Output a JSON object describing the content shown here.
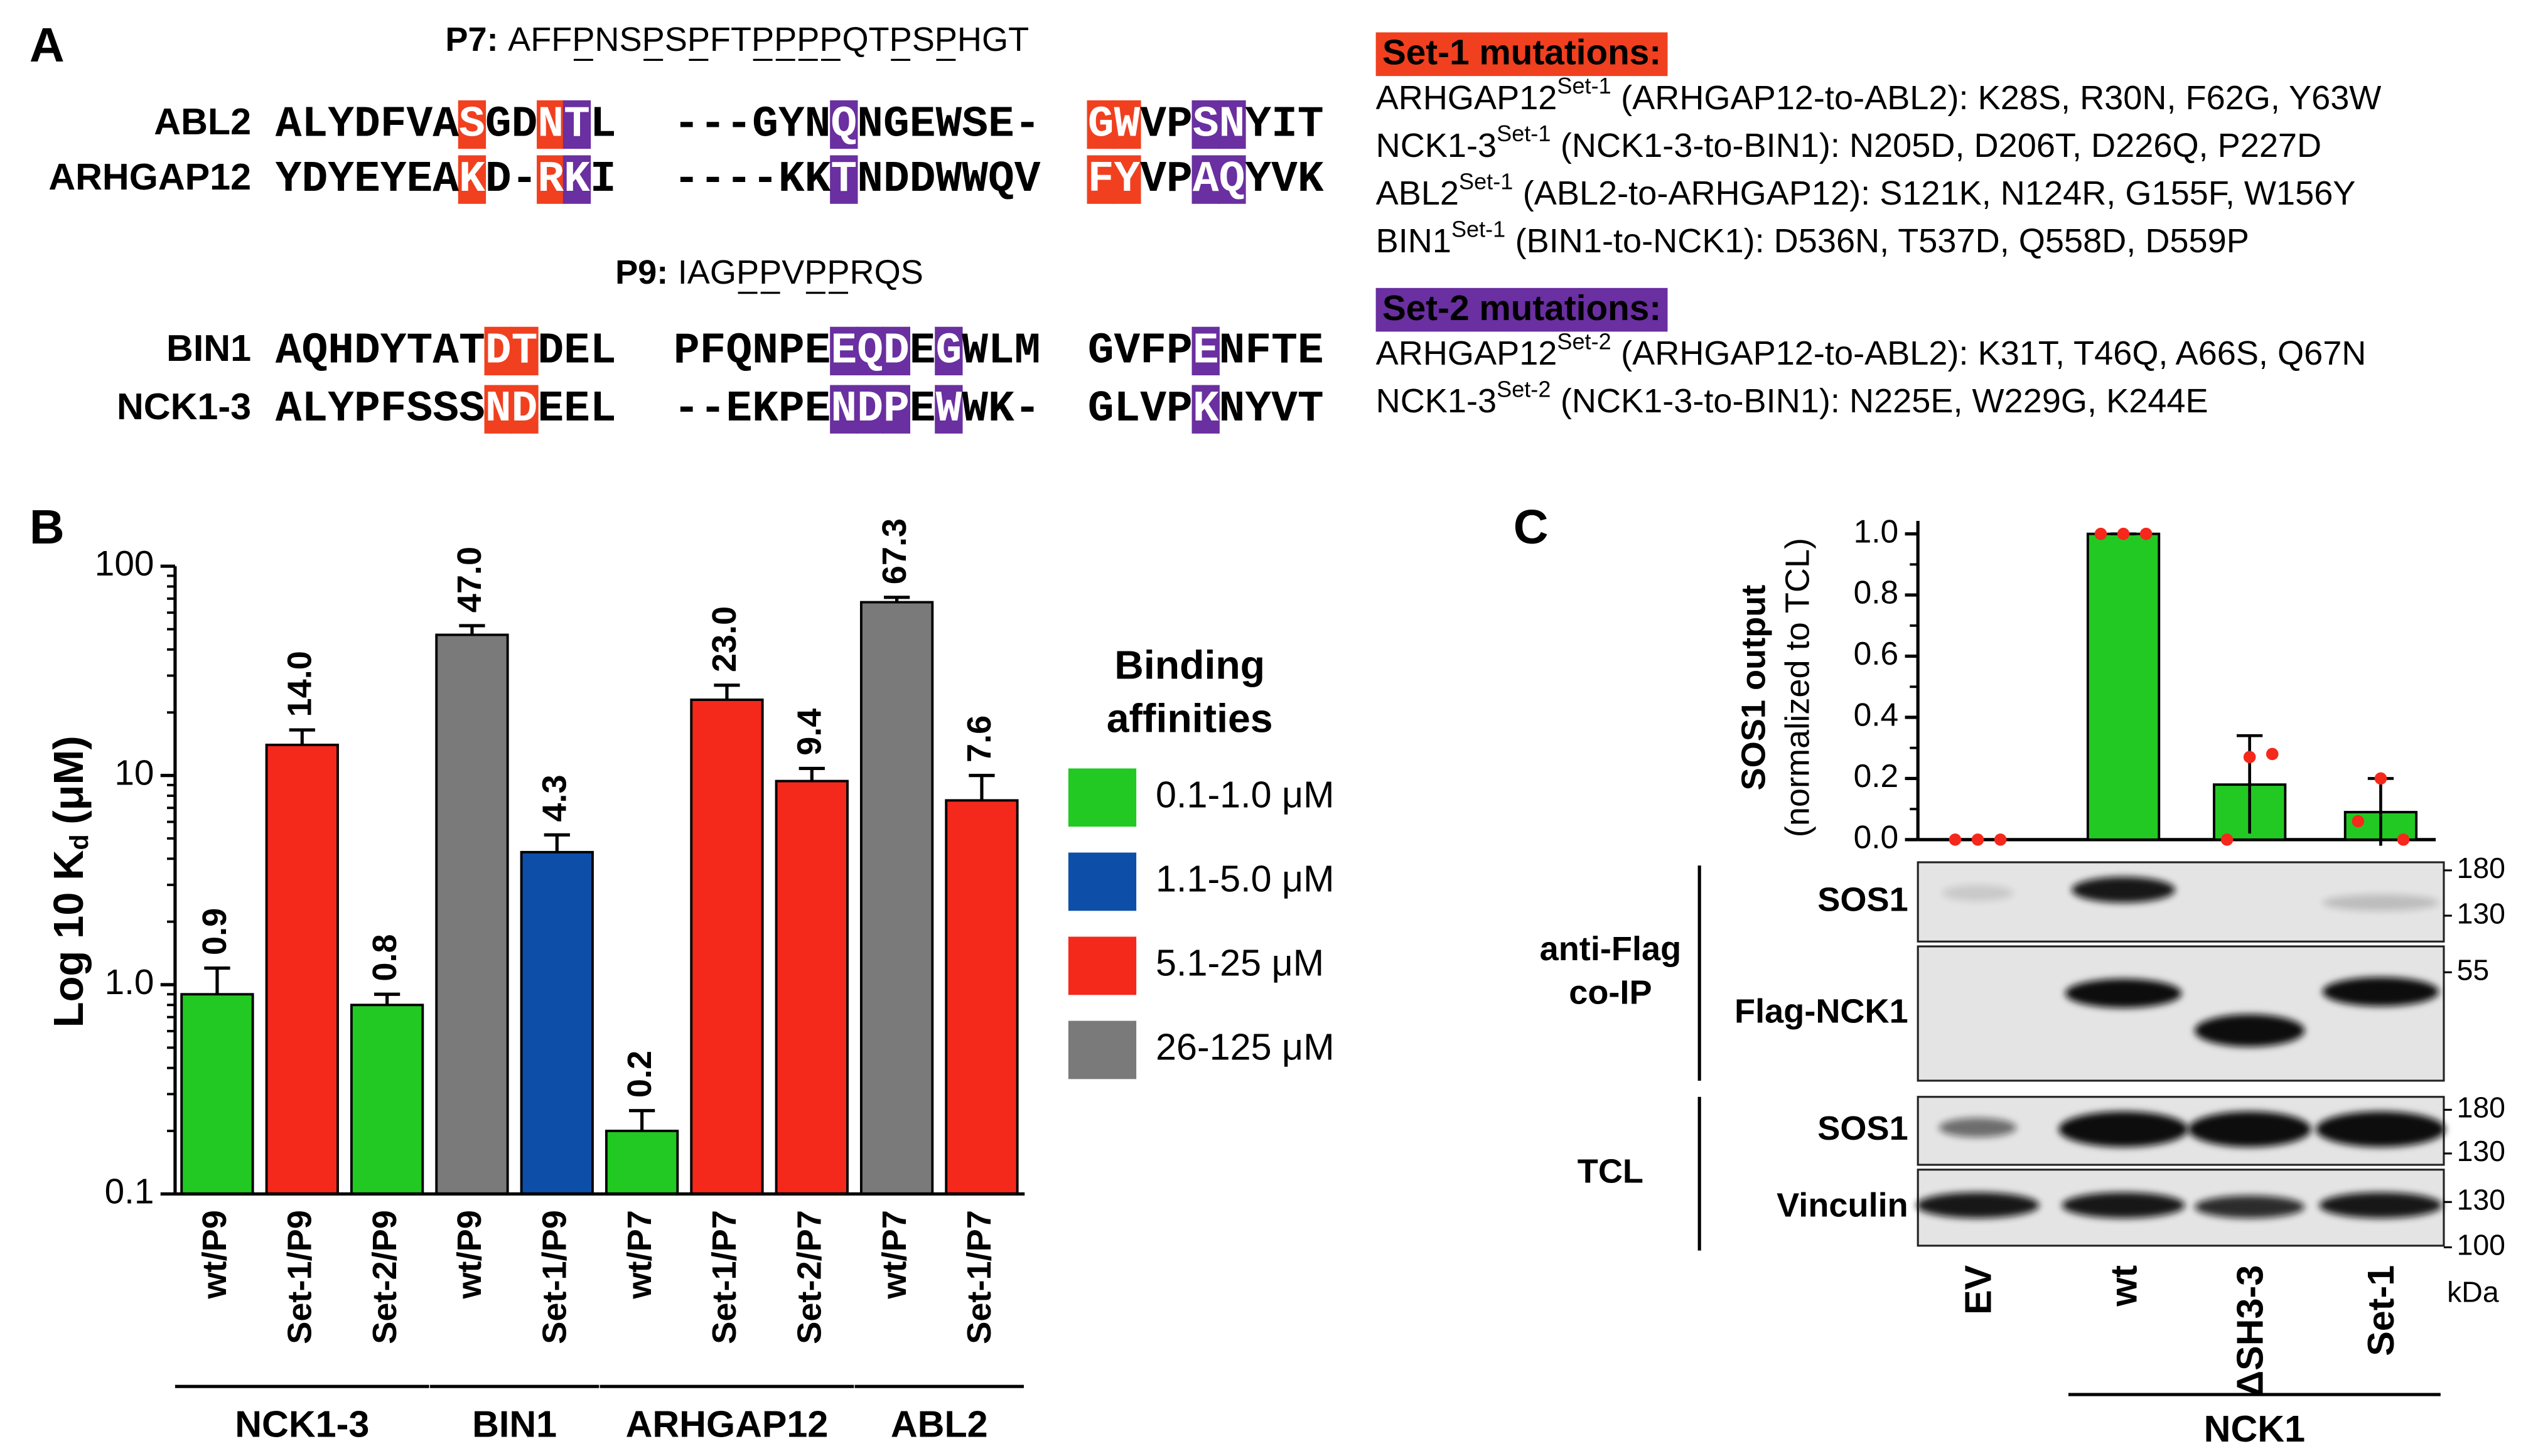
{
  "panel_a": {
    "label": "A",
    "peptides": [
      {
        "name": "P7:",
        "sequence": "AFFPNSPSPFTPPPPQTPSPHGT"
      },
      {
        "name": "P9:",
        "sequence": "IAGPPVPPRQS"
      }
    ],
    "alignments": [
      [
        {
          "name": "ABL2",
          "blocks": [
            "ALYDFVASGDNTL",
            "---GYNQNGEWSE-",
            "GWVPSNYIT"
          ]
        },
        {
          "name": "ARHGAP12",
          "blocks": [
            "YDYEYEAKD-RKI",
            "----KKTNDDWWQV",
            "FYVPAQYVK"
          ]
        }
      ],
      [
        {
          "name": "BIN1",
          "blocks": [
            "AQHDYTATDTDEL",
            "PFQNPEEQDEGWLM",
            "GVFPENFTE"
          ]
        },
        {
          "name": "NCK1-3",
          "blocks": [
            "ALYPFSSSNDEEL",
            "--EKPENDPEWWK-",
            "GLVPKNYVT"
          ]
        }
      ]
    ],
    "mutation_sets": [
      {
        "title": "Set-1 mutations:",
        "color": "#f0401f",
        "items": [
          {
            "protein": "ARHGAP12",
            "set": "Set-1",
            "description": "(ARHGAP12-to-ABL2): K28S, R30N, F62G, Y63W"
          },
          {
            "protein": "NCK1-3",
            "set": "Set-1",
            "description": "(NCK1-3-to-BIN1): N205D, D206T, D226Q, P227D"
          },
          {
            "protein": "ABL2",
            "set": "Set-1",
            "description": "(ABL2-to-ARHGAP12): S121K, N124R, G155F, W156Y"
          },
          {
            "protein": "BIN1",
            "set": "Set-1",
            "description": "(BIN1-to-NCK1): D536N, T537D, Q558D, D559P"
          }
        ]
      },
      {
        "title": "Set-2 mutations:",
        "color": "#6a2fa0",
        "items": [
          {
            "protein": "ARHGAP12",
            "set": "Set-2",
            "description": "(ARHGAP12-to-ABL2): K31T, T46Q, A66S, Q67N"
          },
          {
            "protein": "NCK1-3",
            "set": "Set-2",
            "description": "(NCK1-3-to-BIN1): N225E, W229G, K244E"
          }
        ]
      }
    ]
  },
  "chart_data": [
    {
      "type": "bar",
      "label": "B",
      "ylabel": [
        "Log 10 K",
        "d",
        "(μM)"
      ],
      "log": true,
      "ylim": [
        0.1,
        100
      ],
      "yticks": [
        0.1,
        {
          "value": 1,
          "label": "1.0"
        },
        10,
        100
      ],
      "groups": [
        {
          "name": "NCK1-3",
          "categories": [
            "wt/P9",
            "Set-1/P9",
            "Set-2/P9"
          ],
          "values": [
            0.9,
            14.0,
            0.8
          ],
          "value_labels": [
            "0.9",
            "14.0",
            "0.8"
          ],
          "errors": [
            0.3,
            2.5,
            0.1
          ],
          "colors": [
            "#22c922",
            "#f5281c",
            "#22c922"
          ]
        },
        {
          "name": "BIN1",
          "categories": [
            "wt/P9",
            "Set-1/P9"
          ],
          "values": [
            47.0,
            4.3
          ],
          "value_labels": [
            "47.0",
            "4.3"
          ],
          "errors": [
            5,
            0.9
          ],
          "colors": [
            "#7a7a7a",
            "#0d4fa8"
          ]
        },
        {
          "name": "ARHGAP12",
          "categories": [
            "wt/P7",
            "Set-1/P7",
            "Set-2/P7"
          ],
          "values": [
            0.2,
            23.0,
            9.4
          ],
          "value_labels": [
            "0.2",
            "23.0",
            "9.4"
          ],
          "errors": [
            0.05,
            4,
            1.4
          ],
          "colors": [
            "#22c922",
            "#f5281c",
            "#f5281c"
          ]
        },
        {
          "name": "ABL2",
          "categories": [
            "wt/P7",
            "Set-1/P7"
          ],
          "values": [
            67.3,
            7.6
          ],
          "value_labels": [
            "67.3",
            "7.6"
          ],
          "errors": [
            3.7,
            2.4
          ],
          "colors": [
            "#7a7a7a",
            "#f5281c"
          ]
        }
      ],
      "legend": {
        "title": [
          "Binding",
          "affinities"
        ],
        "items": [
          {
            "label": "0.1-1.0 μM",
            "color": "#22c922"
          },
          {
            "label": "1.1-5.0 μM",
            "color": "#0d4fa8"
          },
          {
            "label": "5.1-25 μM",
            "color": "#f5281c"
          },
          {
            "label": "26-125 μM",
            "color": "#7a7a7a"
          }
        ]
      }
    },
    {
      "type": "bar",
      "label": "C",
      "ylabel": [
        "SOS1 output",
        "(normalized to TCL)"
      ],
      "ylim": [
        0,
        1
      ],
      "yticks": [
        {
          "value": 0,
          "label": "0.0"
        },
        0.2,
        0.4,
        0.6,
        0.8,
        {
          "value": 1,
          "label": "1.0"
        }
      ],
      "color": "#22c922",
      "point_color": "#f5281c",
      "categories": [
        "EV",
        "wt",
        "ΔSH3-3",
        "Set-1"
      ],
      "values": [
        0,
        1.0,
        0.18,
        0.09
      ],
      "errors": [
        0,
        0,
        0.16,
        0.11
      ],
      "points": [
        [
          0,
          0,
          0
        ],
        [
          1,
          1,
          1
        ],
        [
          0,
          0.27,
          0.28
        ],
        [
          0.06,
          0.2,
          0
        ]
      ],
      "group_label": "NCK1"
    }
  ],
  "blot": {
    "rows": [
      {
        "label": "SOS1",
        "markers": [
          180,
          130
        ]
      },
      {
        "label": "Flag-NCK1",
        "markers": [
          55
        ]
      },
      {
        "label": "SOS1",
        "markers": [
          180,
          130
        ]
      },
      {
        "label": "Vinculin",
        "markers": [
          130,
          100
        ]
      }
    ],
    "sections": [
      [
        "anti-Flag",
        "co-IP"
      ],
      [
        "TCL"
      ]
    ],
    "unit": "kDa"
  }
}
